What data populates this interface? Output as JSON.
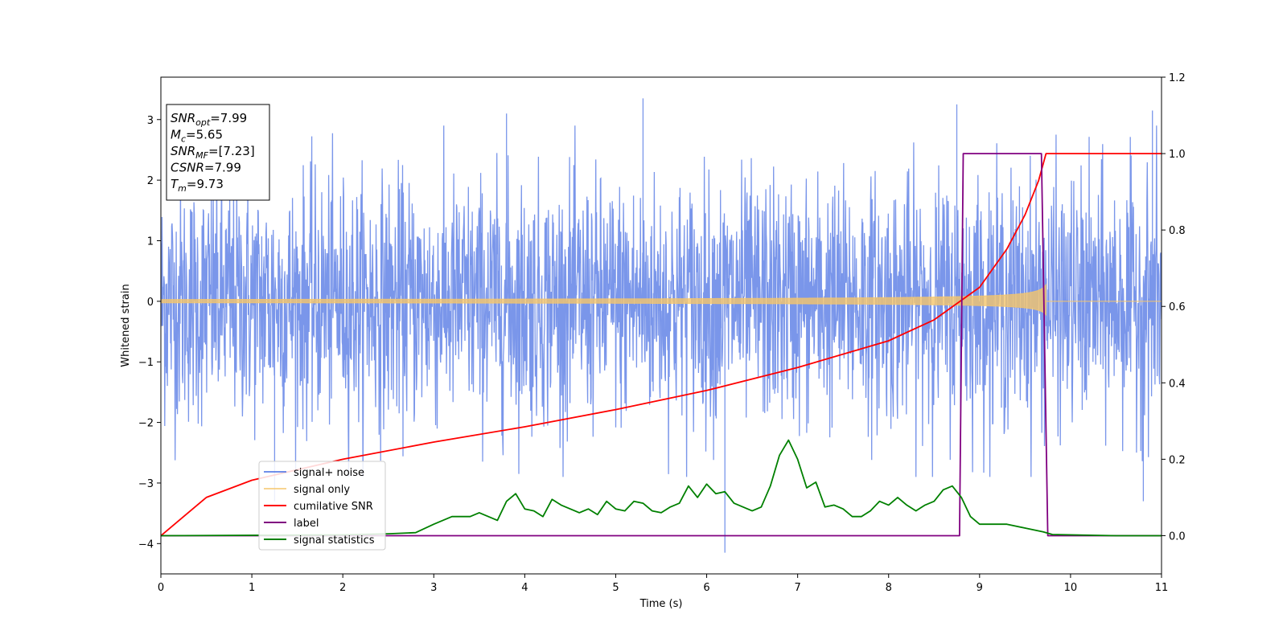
{
  "chart_data": {
    "type": "line",
    "xlabel": "Time (s)",
    "ylabel": "Whitened strain",
    "xlim": [
      0,
      11
    ],
    "ylim": [
      -4.5,
      3.7
    ],
    "y2lim": [
      -0.1,
      1.2
    ],
    "x_ticks": [
      0,
      1,
      2,
      3,
      4,
      5,
      6,
      7,
      8,
      9,
      10,
      11
    ],
    "y_ticks": [
      -4,
      -3,
      -2,
      -1,
      0,
      1,
      2,
      3
    ],
    "y2_ticks": [
      "0.0",
      "0.2",
      "0.4",
      "0.6",
      "0.8",
      "1.0",
      "1.2"
    ],
    "legend_position": "lower-left",
    "info_box": [
      {
        "main": "SNR",
        "sub": "opt",
        "rest": "=7.99"
      },
      {
        "main": "M",
        "sub": "c",
        "rest": "=5.65"
      },
      {
        "main": "SNR",
        "sub": "MF",
        "rest": "=[7.23]"
      },
      {
        "main": "CSNR",
        "sub": "",
        "rest": "=7.99"
      },
      {
        "main": "T",
        "sub": "m",
        "rest": "=9.73"
      }
    ],
    "series": [
      {
        "name": "signal+ noise",
        "color": "#4169e1",
        "axis": "left",
        "kind": "noise",
        "sigma": 1.0,
        "extremes": [
          [
            3.8,
            3.1
          ],
          [
            5.3,
            3.35
          ],
          [
            8.75,
            3.25
          ],
          [
            6.2,
            -4.15
          ],
          [
            1.25,
            -3.3
          ],
          [
            10.8,
            -3.3
          ],
          [
            10.9,
            3.15
          ]
        ]
      },
      {
        "name": "signal only",
        "color": "#f5c56b",
        "axis": "left",
        "kind": "chirp",
        "merger_time": 9.73,
        "amplitude_start": 0.03,
        "amplitude_peak": 0.62
      },
      {
        "name": "cumilative SNR",
        "color": "#ff0000",
        "axis": "right",
        "points": [
          [
            0,
            0.0
          ],
          [
            0.5,
            0.1
          ],
          [
            1,
            0.145
          ],
          [
            2,
            0.2
          ],
          [
            3,
            0.245
          ],
          [
            4,
            0.285
          ],
          [
            5,
            0.33
          ],
          [
            6,
            0.38
          ],
          [
            7,
            0.44
          ],
          [
            8,
            0.51
          ],
          [
            8.5,
            0.565
          ],
          [
            9,
            0.65
          ],
          [
            9.3,
            0.75
          ],
          [
            9.5,
            0.84
          ],
          [
            9.65,
            0.93
          ],
          [
            9.73,
            1.0
          ],
          [
            11,
            1.0
          ]
        ]
      },
      {
        "name": "label",
        "color": "#800080",
        "axis": "right",
        "points": [
          [
            0,
            0.0
          ],
          [
            8.78,
            0.0
          ],
          [
            8.82,
            1.0
          ],
          [
            9.68,
            1.0
          ],
          [
            9.75,
            0.0
          ],
          [
            11,
            0.0
          ]
        ]
      },
      {
        "name": "signal statistics",
        "color": "#008000",
        "axis": "right",
        "points": [
          [
            0,
            0.0
          ],
          [
            2.0,
            0.002
          ],
          [
            2.5,
            0.005
          ],
          [
            2.8,
            0.008
          ],
          [
            3.0,
            0.03
          ],
          [
            3.2,
            0.05
          ],
          [
            3.4,
            0.05
          ],
          [
            3.5,
            0.06
          ],
          [
            3.7,
            0.04
          ],
          [
            3.8,
            0.09
          ],
          [
            3.9,
            0.11
          ],
          [
            4.0,
            0.07
          ],
          [
            4.1,
            0.065
          ],
          [
            4.2,
            0.05
          ],
          [
            4.3,
            0.095
          ],
          [
            4.4,
            0.08
          ],
          [
            4.6,
            0.06
          ],
          [
            4.7,
            0.07
          ],
          [
            4.8,
            0.055
          ],
          [
            4.9,
            0.09
          ],
          [
            5.0,
            0.07
          ],
          [
            5.1,
            0.065
          ],
          [
            5.2,
            0.09
          ],
          [
            5.3,
            0.085
          ],
          [
            5.4,
            0.065
          ],
          [
            5.5,
            0.06
          ],
          [
            5.6,
            0.075
          ],
          [
            5.7,
            0.085
          ],
          [
            5.8,
            0.13
          ],
          [
            5.9,
            0.1
          ],
          [
            6.0,
            0.135
          ],
          [
            6.1,
            0.11
          ],
          [
            6.2,
            0.115
          ],
          [
            6.3,
            0.085
          ],
          [
            6.4,
            0.075
          ],
          [
            6.5,
            0.065
          ],
          [
            6.6,
            0.075
          ],
          [
            6.7,
            0.13
          ],
          [
            6.8,
            0.21
          ],
          [
            6.9,
            0.25
          ],
          [
            7.0,
            0.2
          ],
          [
            7.1,
            0.125
          ],
          [
            7.2,
            0.14
          ],
          [
            7.3,
            0.075
          ],
          [
            7.4,
            0.08
          ],
          [
            7.5,
            0.07
          ],
          [
            7.6,
            0.05
          ],
          [
            7.7,
            0.05
          ],
          [
            7.8,
            0.065
          ],
          [
            7.9,
            0.09
          ],
          [
            8.0,
            0.08
          ],
          [
            8.1,
            0.1
          ],
          [
            8.2,
            0.08
          ],
          [
            8.3,
            0.065
          ],
          [
            8.4,
            0.08
          ],
          [
            8.5,
            0.09
          ],
          [
            8.6,
            0.12
          ],
          [
            8.7,
            0.13
          ],
          [
            8.8,
            0.1
          ],
          [
            8.9,
            0.05
          ],
          [
            9.0,
            0.03
          ],
          [
            9.1,
            0.03
          ],
          [
            9.3,
            0.03
          ],
          [
            9.5,
            0.02
          ],
          [
            9.7,
            0.01
          ],
          [
            9.8,
            0.003
          ],
          [
            10.5,
            0.0
          ],
          [
            11,
            0.0
          ]
        ]
      }
    ]
  }
}
